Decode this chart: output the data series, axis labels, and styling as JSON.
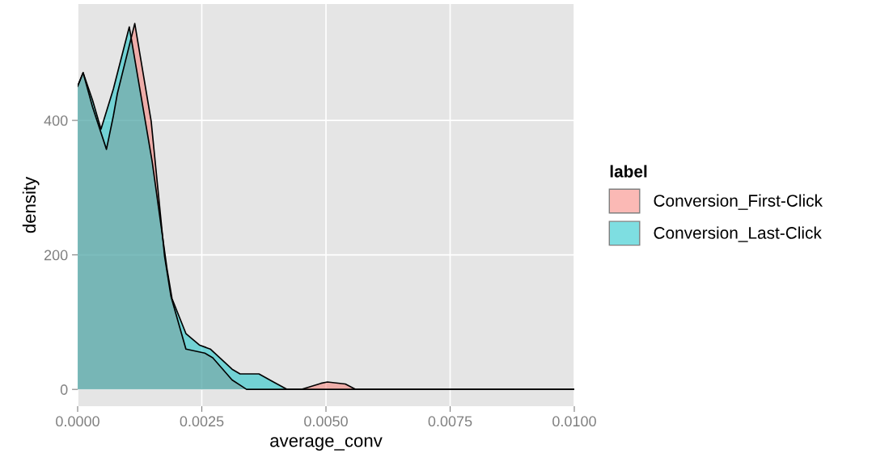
{
  "chart_data": {
    "type": "area",
    "xlabel": "average_conv",
    "ylabel": "density",
    "legend_title": "label",
    "legend": "right",
    "grid": true,
    "xlim": [
      0,
      0.01
    ],
    "xticks": [
      {
        "value": 0,
        "label": "0.0000"
      },
      {
        "value": 0.0025,
        "label": "0.0025"
      },
      {
        "value": 0.005,
        "label": "0.0050"
      },
      {
        "value": 0.0075,
        "label": "0.0075"
      },
      {
        "value": 0.01,
        "label": "0.0100"
      }
    ],
    "ylim": [
      -25,
      573
    ],
    "yticks": [
      0,
      200,
      400
    ],
    "series": [
      {
        "name": "Conversion_First-Click",
        "color": "#f8766d",
        "x": [
          0,
          0.00011,
          0.0003,
          0.00058,
          0.00072,
          0.0008,
          0.00115,
          0.00148,
          0.00175,
          0.00188,
          0.00218,
          0.00256,
          0.00272,
          0.00311,
          0.00332,
          0.0034,
          0.0045,
          0.0049,
          0.00503,
          0.00539,
          0.0056,
          0.01
        ],
        "values": [
          451,
          471,
          420,
          357,
          407,
          440,
          544,
          399,
          198,
          138,
          60,
          54,
          47,
          14,
          4,
          0,
          0,
          9,
          11,
          8,
          0,
          0
        ]
      },
      {
        "name": "Conversion_Last-Click",
        "color": "#00bfc4",
        "x": [
          0,
          0.00011,
          0.0003,
          0.00047,
          0.00072,
          0.00104,
          0.0015,
          0.0018,
          0.0019,
          0.00218,
          0.00245,
          0.00267,
          0.00311,
          0.00327,
          0.00365,
          0.00392,
          0.00422,
          0.01
        ],
        "values": [
          451,
          471,
          430,
          387,
          447,
          539,
          339,
          179,
          135,
          83,
          66,
          60,
          30,
          23,
          23,
          12,
          0,
          0
        ]
      }
    ]
  }
}
